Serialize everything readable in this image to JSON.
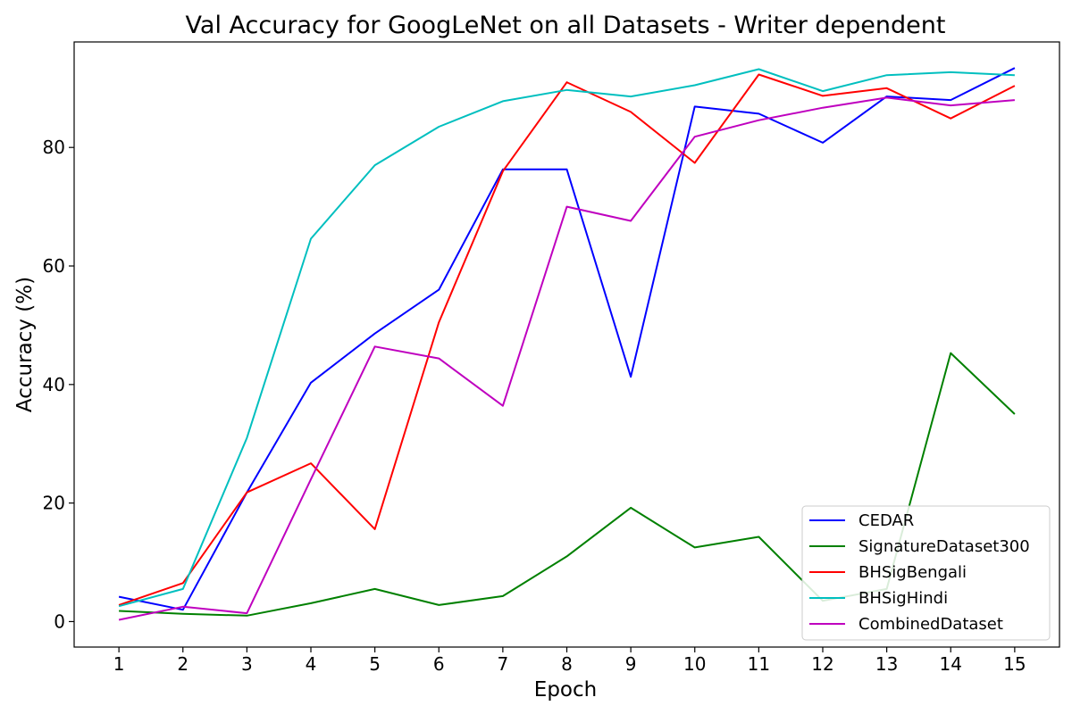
{
  "chart_data": {
    "type": "line",
    "title": "Val Accuracy for GoogLeNet on all Datasets - Writer dependent",
    "xlabel": "Epoch",
    "ylabel": "Accuracy (%)",
    "x": [
      1,
      2,
      3,
      4,
      5,
      6,
      7,
      8,
      9,
      10,
      11,
      12,
      13,
      14,
      15
    ],
    "xticks": [
      "1",
      "2",
      "3",
      "4",
      "5",
      "6",
      "7",
      "8",
      "9",
      "10",
      "11",
      "12",
      "13",
      "14",
      "15"
    ],
    "xlim": [
      0.3,
      15.7
    ],
    "ylim": [
      -4.3,
      97.8
    ],
    "yticks": [
      0,
      20,
      40,
      60,
      80
    ],
    "ytick_labels": [
      "0",
      "20",
      "40",
      "60",
      "80"
    ],
    "grid": false,
    "legend_position": "lower-right",
    "series": [
      {
        "name": "CEDAR",
        "color": "#0000ff",
        "values": [
          4.2,
          2.0,
          21.8,
          40.3,
          48.6,
          56.0,
          76.3,
          76.3,
          41.3,
          86.9,
          85.7,
          80.8,
          88.6,
          88.0,
          93.4
        ]
      },
      {
        "name": "SignatureDataset300",
        "color": "#008000",
        "values": [
          1.8,
          1.3,
          1.0,
          3.1,
          5.5,
          2.8,
          4.3,
          11.0,
          19.2,
          12.5,
          14.3,
          3.5,
          5.5,
          45.3,
          35.0
        ]
      },
      {
        "name": "BHSigBengali",
        "color": "#ff0000",
        "values": [
          2.8,
          6.5,
          21.8,
          26.7,
          15.6,
          50.5,
          76.0,
          91.0,
          86.0,
          77.4,
          92.3,
          88.7,
          90.0,
          84.9,
          90.4
        ]
      },
      {
        "name": "BHSigHindi",
        "color": "#00bfbf",
        "values": [
          2.6,
          5.5,
          31.0,
          64.6,
          77.0,
          83.5,
          87.8,
          89.7,
          88.6,
          90.5,
          93.2,
          89.5,
          92.2,
          92.7,
          92.2
        ]
      },
      {
        "name": "CombinedDataset",
        "color": "#bf00bf",
        "values": [
          0.3,
          2.5,
          1.4,
          24.0,
          46.4,
          44.4,
          36.4,
          70.0,
          67.6,
          81.8,
          84.6,
          86.7,
          88.4,
          87.1,
          88.0
        ]
      }
    ]
  }
}
